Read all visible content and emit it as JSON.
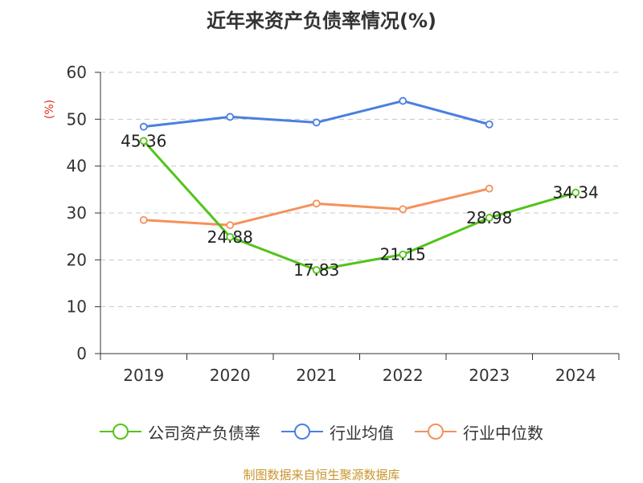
{
  "title": "近年来资产负债率情况(%)",
  "y_unit_label": "(%)",
  "source": "制图数据来自恒生聚源数据库",
  "chart_data": {
    "type": "line",
    "title": "近年来资产负债率情况(%)",
    "xlabel": "",
    "ylabel": "(%)",
    "categories": [
      "2019",
      "2020",
      "2021",
      "2022",
      "2023",
      "2024"
    ],
    "ylim": [
      0,
      60
    ],
    "yticks": [
      0,
      10,
      20,
      30,
      40,
      50,
      60
    ],
    "grid": true,
    "legend_position": "bottom",
    "series": [
      {
        "name": "公司资产负债率",
        "color": "#52c41a",
        "values": [
          45.36,
          24.88,
          17.83,
          21.15,
          28.98,
          34.34
        ],
        "labels": [
          "45.36",
          "24.88",
          "17.83",
          "21.15",
          "28.98",
          "34.34"
        ]
      },
      {
        "name": "行业均值",
        "color": "#4a7fe0",
        "values": [
          48.4,
          50.5,
          49.3,
          53.9,
          48.9,
          null
        ]
      },
      {
        "name": "行业中位数",
        "color": "#f5915a",
        "values": [
          28.5,
          27.4,
          32.0,
          30.8,
          35.2,
          null
        ]
      }
    ]
  }
}
